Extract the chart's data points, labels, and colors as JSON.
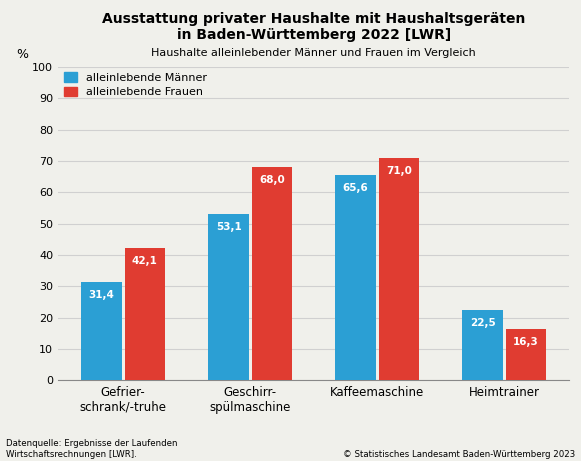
{
  "title_line1": "Ausstattung privater Haushalte mit Haushaltsgeräten",
  "title_line2": "in Baden-Württemberg 2022 [LWR]",
  "subtitle": "Haushalte alleinlebender Männer und Frauen im Vergleich",
  "categories": [
    "Gefrier-\nschrank/-truhe",
    "Geschirr-\nspülmaschine",
    "Kaffeemaschine",
    "Heimtrainer"
  ],
  "men_values": [
    31.4,
    53.1,
    65.6,
    22.5
  ],
  "women_values": [
    42.1,
    68.0,
    71.0,
    16.3
  ],
  "men_color": "#2b9fd4",
  "women_color": "#e03c31",
  "men_label": "alleinlebende Männer",
  "women_label": "alleinlebende Frauen",
  "ylabel": "%",
  "ylim": [
    0,
    100
  ],
  "yticks": [
    0,
    10,
    20,
    30,
    40,
    50,
    60,
    70,
    80,
    90,
    100
  ],
  "bar_value_color": "white",
  "bar_value_fontsize": 7.5,
  "footnote_left": "Datenquelle: Ergebnisse der Laufenden\nWirtschaftsrechnungen [LWR].",
  "footnote_right": "© Statistisches Landesamt Baden-Württemberg 2023",
  "background_color": "#f0f0eb",
  "grid_color": "#d0d0d0",
  "title_fontsize": 10,
  "subtitle_fontsize": 8,
  "bar_width": 0.32,
  "bar_gap": 0.02
}
